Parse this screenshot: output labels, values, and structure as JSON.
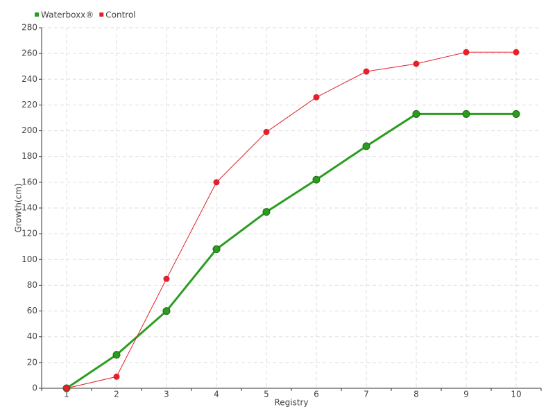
{
  "chart_data": {
    "type": "line",
    "x_label": "Registry",
    "y_label": "Growth(cm)",
    "categories": [
      "1",
      "2",
      "3",
      "4",
      "5",
      "6",
      "7",
      "8",
      "9",
      "10"
    ],
    "series": [
      {
        "name": "Waterboxx®",
        "color": "#2a9d1f",
        "values": [
          0,
          26,
          60,
          108,
          137,
          162,
          188,
          213,
          213,
          213
        ]
      },
      {
        "name": "Control",
        "color": "#e3202b",
        "values": [
          0,
          9,
          85,
          160,
          199,
          226,
          246,
          252,
          261,
          261
        ]
      }
    ],
    "ylim": [
      0,
      280
    ],
    "yticks": [
      0,
      20,
      40,
      60,
      80,
      100,
      120,
      140,
      160,
      180,
      200,
      220,
      240,
      260,
      280
    ],
    "grid": true,
    "legend": "top-left"
  }
}
